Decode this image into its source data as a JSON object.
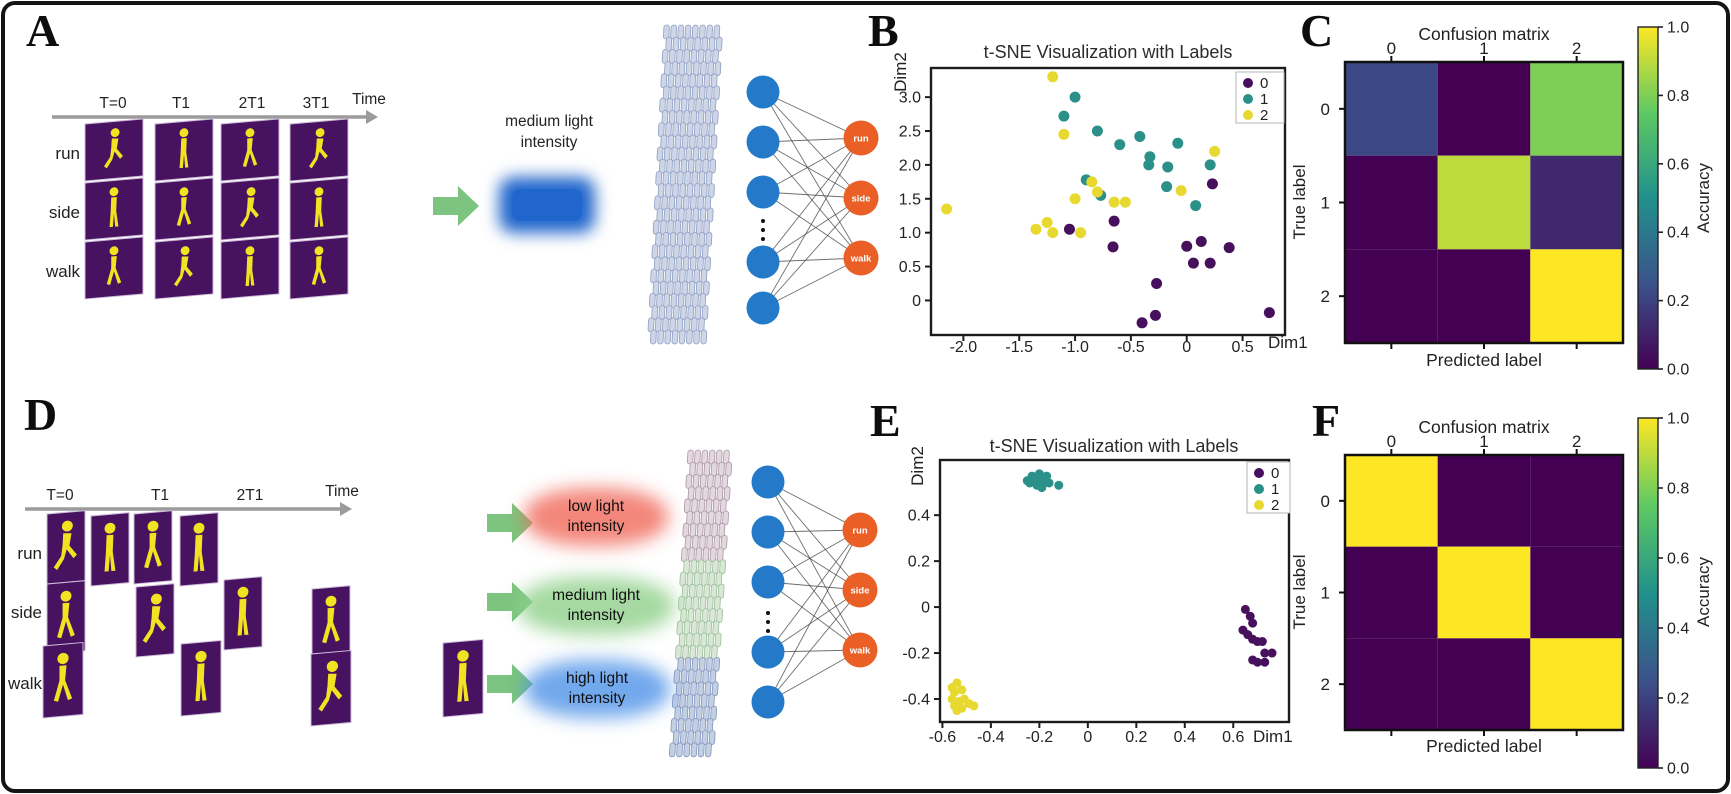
{
  "colors": {
    "class0": "#46105c",
    "class1": "#2b9089",
    "class2": "#e8d930",
    "neuron_blue": "#2579c9",
    "node_orange": "#e95f26",
    "arrow_green": "#7cc47f",
    "frame_purple": "#471260",
    "silhouette_yellow": "#f2e322",
    "timeline_gray": "#9b9b9b",
    "blob_blue": "#2166cc",
    "glow_low": "#f0695a",
    "glow_medium": "#8fd08a",
    "glow_high": "#4f93e8",
    "stack_a_fill": "#cdd5e7",
    "stack_a_stroke": "#8fa0c4",
    "stack_low_fill": "#e3d8de",
    "stack_low_stroke": "#ab97a6",
    "stack_mid_fill": "#d8e8d5",
    "stack_mid_stroke": "#9cbd9c",
    "stack_high_fill": "#c3cfe3",
    "stack_high_stroke": "#8396bf",
    "viridis_stops": [
      "#440154",
      "#3b528b",
      "#21918c",
      "#5ec962",
      "#fde725"
    ]
  },
  "panel_a": {
    "label": "A",
    "timeline": {
      "ticks": [
        "T=0",
        "T1",
        "2T1",
        "3T1"
      ],
      "axis_label": "Time"
    },
    "rows": [
      "run",
      "side",
      "walk"
    ],
    "annotation": "medium light intensity",
    "output_labels": [
      "run",
      "side",
      "walk"
    ]
  },
  "panel_d": {
    "label": "D",
    "timeline": {
      "ticks": [
        "T=0",
        "T1",
        "2T1"
      ],
      "axis_label": "Time"
    },
    "rows": [
      "run",
      "side",
      "walk"
    ],
    "intensity_labels": [
      "low light intensity",
      "medium light intensity",
      "high light intensity"
    ],
    "output_labels": [
      "run",
      "side",
      "walk"
    ]
  },
  "chart_data": [
    {
      "id": "B",
      "panel_label": "B",
      "type": "scatter",
      "title": "t-SNE Visualization with Labels",
      "xlabel": "Dim1",
      "ylabel": "Dim2",
      "xlim": [
        -2.29,
        0.88
      ],
      "ylim": [
        -0.51,
        3.43
      ],
      "xtick_values": [
        -2.0,
        -1.5,
        -1.0,
        -0.5,
        0,
        0.5
      ],
      "xtick_labels": [
        "-2.0",
        "-1.5",
        "-1.0",
        "-0.5",
        "0",
        "0.5"
      ],
      "ytick_values": [
        3.0,
        2.5,
        2.0,
        1.5,
        1.0,
        0.5,
        0
      ],
      "ytick_labels": [
        "3.0",
        "2.5",
        "2.0",
        "1.5",
        "1.0",
        "0.5",
        "0"
      ],
      "legend_position": "top-right",
      "grid": false,
      "series": [
        {
          "name": "0",
          "color_key": "class0",
          "points": [
            [
              -1.05,
              1.05
            ],
            [
              -0.65,
              1.17
            ],
            [
              -0.66,
              0.79
            ],
            [
              0.0,
              0.8
            ],
            [
              0.13,
              0.87
            ],
            [
              0.06,
              0.55
            ],
            [
              0.21,
              0.55
            ],
            [
              0.38,
              0.78
            ],
            [
              -0.27,
              0.25
            ],
            [
              -0.4,
              -0.33
            ],
            [
              -0.28,
              -0.22
            ],
            [
              0.74,
              -0.18
            ],
            [
              0.23,
              1.72
            ]
          ]
        },
        {
          "name": "1",
          "color_key": "class1",
          "points": [
            [
              -1.0,
              3.0
            ],
            [
              -1.1,
              2.72
            ],
            [
              -0.8,
              2.5
            ],
            [
              -0.6,
              2.3
            ],
            [
              -0.42,
              2.42
            ],
            [
              -0.08,
              2.32
            ],
            [
              -0.33,
              2.12
            ],
            [
              -0.34,
              2.0
            ],
            [
              -0.17,
              1.97
            ],
            [
              0.21,
              2.0
            ],
            [
              -0.18,
              1.68
            ],
            [
              0.08,
              1.4
            ],
            [
              -0.9,
              1.78
            ],
            [
              -0.77,
              1.55
            ]
          ]
        },
        {
          "name": "2",
          "color_key": "class2",
          "points": [
            [
              -1.2,
              3.3
            ],
            [
              -1.1,
              2.45
            ],
            [
              0.25,
              2.2
            ],
            [
              -0.85,
              1.75
            ],
            [
              -0.8,
              1.6
            ],
            [
              -1.0,
              1.5
            ],
            [
              -0.65,
              1.45
            ],
            [
              -0.55,
              1.45
            ],
            [
              -2.15,
              1.35
            ],
            [
              -0.05,
              1.62
            ],
            [
              -1.25,
              1.15
            ],
            [
              -1.35,
              1.05
            ],
            [
              -1.2,
              1.0
            ],
            [
              -0.95,
              1.0
            ]
          ]
        }
      ]
    },
    {
      "id": "C",
      "panel_label": "C",
      "type": "heatmap",
      "title": "Confusion matrix",
      "xlabel": "Predicted label",
      "ylabel": "True label",
      "x_categories": [
        "0",
        "1",
        "2"
      ],
      "y_categories": [
        "0",
        "1",
        "2"
      ],
      "values": [
        [
          0.22,
          0.0,
          0.8
        ],
        [
          0.0,
          0.9,
          0.12
        ],
        [
          0.0,
          0.0,
          1.0
        ]
      ],
      "colorbar": {
        "label": "Accuracy",
        "tick_values": [
          1.0,
          0.8,
          0.6,
          0.4,
          0.2,
          0.0
        ],
        "tick_labels": [
          "1.0",
          "0.8",
          "0.6",
          "0.4",
          "0.2",
          "0.0"
        ],
        "range": [
          0,
          1
        ]
      }
    },
    {
      "id": "E",
      "panel_label": "E",
      "type": "scatter",
      "title": "t-SNE Visualization with Labels",
      "xlabel": "Dim1",
      "ylabel": "Dim2",
      "xlim": [
        -0.61,
        0.83
      ],
      "ylim": [
        -0.5,
        0.64
      ],
      "xtick_values": [
        -0.6,
        -0.4,
        -0.2,
        0,
        0.2,
        0.4,
        0.6
      ],
      "xtick_labels": [
        "-0.6",
        "-0.4",
        "-0.2",
        "0",
        "0.2",
        "0.4",
        "0.6"
      ],
      "ytick_values": [
        0.4,
        0.2,
        0,
        -0.2,
        -0.4
      ],
      "ytick_labels": [
        "0.4",
        "0.2",
        "0",
        "-0.2",
        "-0.4"
      ],
      "legend_position": "top-right",
      "grid": false,
      "series": [
        {
          "name": "0",
          "color_key": "class0",
          "points": [
            [
              0.65,
              -0.01
            ],
            [
              0.67,
              -0.04
            ],
            [
              0.68,
              -0.07
            ],
            [
              0.64,
              -0.1
            ],
            [
              0.66,
              -0.12
            ],
            [
              0.68,
              -0.14
            ],
            [
              0.7,
              -0.15
            ],
            [
              0.72,
              -0.15
            ],
            [
              0.73,
              -0.2
            ],
            [
              0.76,
              -0.2
            ],
            [
              0.68,
              -0.23
            ],
            [
              0.7,
              -0.24
            ],
            [
              0.73,
              -0.24
            ]
          ]
        },
        {
          "name": "1",
          "color_key": "class1",
          "points": [
            [
              -0.22,
              0.56
            ],
            [
              -0.2,
              0.58
            ],
            [
              -0.18,
              0.55
            ],
            [
              -0.21,
              0.53
            ],
            [
              -0.24,
              0.54
            ],
            [
              -0.19,
              0.52
            ],
            [
              -0.16,
              0.54
            ],
            [
              -0.23,
              0.57
            ],
            [
              -0.17,
              0.57
            ],
            [
              -0.2,
              0.55
            ],
            [
              -0.12,
              0.53
            ],
            [
              -0.25,
              0.55
            ]
          ]
        },
        {
          "name": "2",
          "color_key": "class2",
          "points": [
            [
              -0.54,
              -0.33
            ],
            [
              -0.55,
              -0.37
            ],
            [
              -0.52,
              -0.36
            ],
            [
              -0.56,
              -0.4
            ],
            [
              -0.53,
              -0.41
            ],
            [
              -0.55,
              -0.43
            ],
            [
              -0.51,
              -0.4
            ],
            [
              -0.49,
              -0.42
            ],
            [
              -0.47,
              -0.43
            ],
            [
              -0.54,
              -0.45
            ],
            [
              -0.52,
              -0.44
            ],
            [
              -0.56,
              -0.35
            ]
          ]
        }
      ]
    },
    {
      "id": "F",
      "panel_label": "F",
      "type": "heatmap",
      "title": "Confusion matrix",
      "xlabel": "Predicted label",
      "ylabel": "True label",
      "x_categories": [
        "0",
        "1",
        "2"
      ],
      "y_categories": [
        "0",
        "1",
        "2"
      ],
      "values": [
        [
          1.0,
          0.0,
          0.0
        ],
        [
          0.0,
          1.0,
          0.0
        ],
        [
          0.0,
          0.0,
          1.0
        ]
      ],
      "colorbar": {
        "label": "Accuracy",
        "tick_values": [
          1.0,
          0.8,
          0.6,
          0.4,
          0.2,
          0.0
        ],
        "tick_labels": [
          "1.0",
          "0.8",
          "0.6",
          "0.4",
          "0.2",
          "0.0"
        ],
        "range": [
          0,
          1
        ]
      }
    }
  ]
}
